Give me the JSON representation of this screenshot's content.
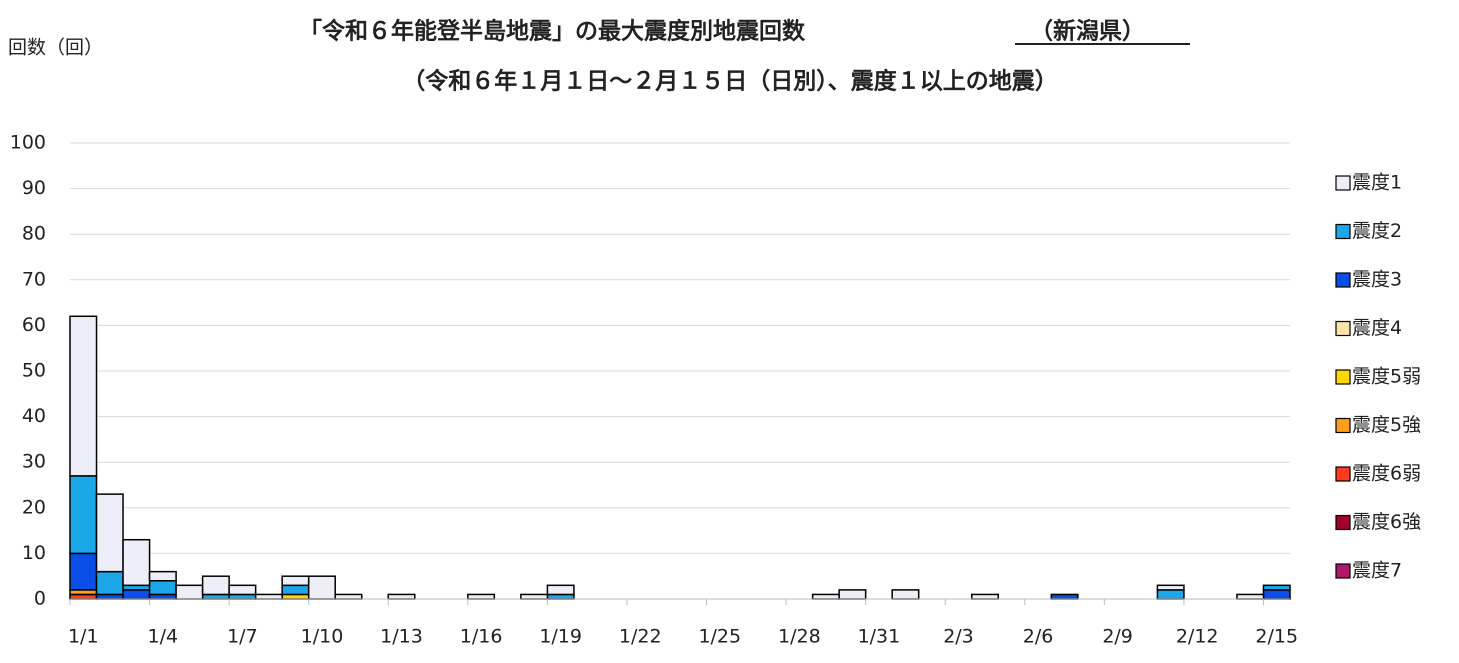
{
  "chart_data": {
    "type": "stacked-bar",
    "title": "「令和６年能登半島地震」の最大震度別地震回数",
    "title_emphasis": "（新潟県）",
    "subtitle": "（令和６年１月１日～２月１５日（日別）、震度１以上の地震）",
    "y_label": "回数（回）",
    "categories": [
      "1/1",
      null,
      null,
      "1/4",
      null,
      null,
      "1/7",
      null,
      null,
      "1/10",
      null,
      null,
      "1/13",
      null,
      null,
      "1/16",
      null,
      null,
      "1/19",
      null,
      null,
      "1/22",
      null,
      null,
      "1/25",
      null,
      null,
      "1/28",
      null,
      null,
      "1/31",
      null,
      null,
      "2/3",
      null,
      null,
      "2/6",
      null,
      null,
      "2/9",
      null,
      null,
      "2/12",
      null,
      null,
      "2/15"
    ],
    "series": [
      {
        "name": "震度1",
        "color": "#eeeef8",
        "values": [
          35,
          17,
          10,
          2,
          3,
          4,
          2,
          1,
          2,
          5,
          1,
          0,
          1,
          0,
          0,
          1,
          0,
          1,
          2,
          0,
          0,
          0,
          0,
          0,
          0,
          0,
          0,
          0,
          1,
          2,
          0,
          2,
          0,
          0,
          1,
          0,
          0,
          0,
          0,
          0,
          0,
          1,
          0,
          0,
          1,
          0
        ]
      },
      {
        "name": "震度2",
        "color": "#1ba7e8",
        "values": [
          17,
          5,
          1,
          3,
          0,
          1,
          1,
          0,
          2,
          0,
          0,
          0,
          0,
          0,
          0,
          0,
          0,
          0,
          1,
          0,
          0,
          0,
          0,
          0,
          0,
          0,
          0,
          0,
          0,
          0,
          0,
          0,
          0,
          0,
          0,
          0,
          0,
          0,
          0,
          0,
          0,
          2,
          0,
          0,
          0,
          1
        ]
      },
      {
        "name": "震度3",
        "color": "#0a4ee8",
        "values": [
          8,
          1,
          2,
          1,
          0,
          0,
          0,
          0,
          0,
          0,
          0,
          0,
          0,
          0,
          0,
          0,
          0,
          0,
          0,
          0,
          0,
          0,
          0,
          0,
          0,
          0,
          0,
          0,
          0,
          0,
          0,
          0,
          0,
          0,
          0,
          0,
          0,
          1,
          0,
          0,
          0,
          0,
          0,
          0,
          0,
          2
        ]
      },
      {
        "name": "震度4",
        "color": "#fbe5a6",
        "values": [
          0,
          0,
          0,
          0,
          0,
          0,
          0,
          0,
          0,
          0,
          0,
          0,
          0,
          0,
          0,
          0,
          0,
          0,
          0,
          0,
          0,
          0,
          0,
          0,
          0,
          0,
          0,
          0,
          0,
          0,
          0,
          0,
          0,
          0,
          0,
          0,
          0,
          0,
          0,
          0,
          0,
          0,
          0,
          0,
          0,
          0
        ]
      },
      {
        "name": "震度5弱",
        "color": "#ffd700",
        "values": [
          0,
          0,
          0,
          0,
          0,
          0,
          0,
          0,
          1,
          0,
          0,
          0,
          0,
          0,
          0,
          0,
          0,
          0,
          0,
          0,
          0,
          0,
          0,
          0,
          0,
          0,
          0,
          0,
          0,
          0,
          0,
          0,
          0,
          0,
          0,
          0,
          0,
          0,
          0,
          0,
          0,
          0,
          0,
          0,
          0,
          0
        ]
      },
      {
        "name": "震度5強",
        "color": "#ff9e1b",
        "values": [
          1,
          0,
          0,
          0,
          0,
          0,
          0,
          0,
          0,
          0,
          0,
          0,
          0,
          0,
          0,
          0,
          0,
          0,
          0,
          0,
          0,
          0,
          0,
          0,
          0,
          0,
          0,
          0,
          0,
          0,
          0,
          0,
          0,
          0,
          0,
          0,
          0,
          0,
          0,
          0,
          0,
          0,
          0,
          0,
          0,
          0
        ]
      },
      {
        "name": "震度6弱",
        "color": "#ff3b1f",
        "values": [
          1,
          0,
          0,
          0,
          0,
          0,
          0,
          0,
          0,
          0,
          0,
          0,
          0,
          0,
          0,
          0,
          0,
          0,
          0,
          0,
          0,
          0,
          0,
          0,
          0,
          0,
          0,
          0,
          0,
          0,
          0,
          0,
          0,
          0,
          0,
          0,
          0,
          0,
          0,
          0,
          0,
          0,
          0,
          0,
          0,
          0
        ]
      },
      {
        "name": "震度6強",
        "color": "#a0002a",
        "values": [
          0,
          0,
          0,
          0,
          0,
          0,
          0,
          0,
          0,
          0,
          0,
          0,
          0,
          0,
          0,
          0,
          0,
          0,
          0,
          0,
          0,
          0,
          0,
          0,
          0,
          0,
          0,
          0,
          0,
          0,
          0,
          0,
          0,
          0,
          0,
          0,
          0,
          0,
          0,
          0,
          0,
          0,
          0,
          0,
          0,
          0
        ]
      },
      {
        "name": "震度7",
        "color": "#b0176a",
        "values": [
          0,
          0,
          0,
          0,
          0,
          0,
          0,
          0,
          0,
          0,
          0,
          0,
          0,
          0,
          0,
          0,
          0,
          0,
          0,
          0,
          0,
          0,
          0,
          0,
          0,
          0,
          0,
          0,
          0,
          0,
          0,
          0,
          0,
          0,
          0,
          0,
          0,
          0,
          0,
          0,
          0,
          0,
          0,
          0,
          0,
          0
        ]
      }
    ],
    "ylim": [
      0,
      100
    ],
    "yticks": [
      0,
      10,
      20,
      30,
      40,
      50,
      60,
      70,
      80,
      90,
      100
    ],
    "grid": true,
    "legend": "right"
  }
}
